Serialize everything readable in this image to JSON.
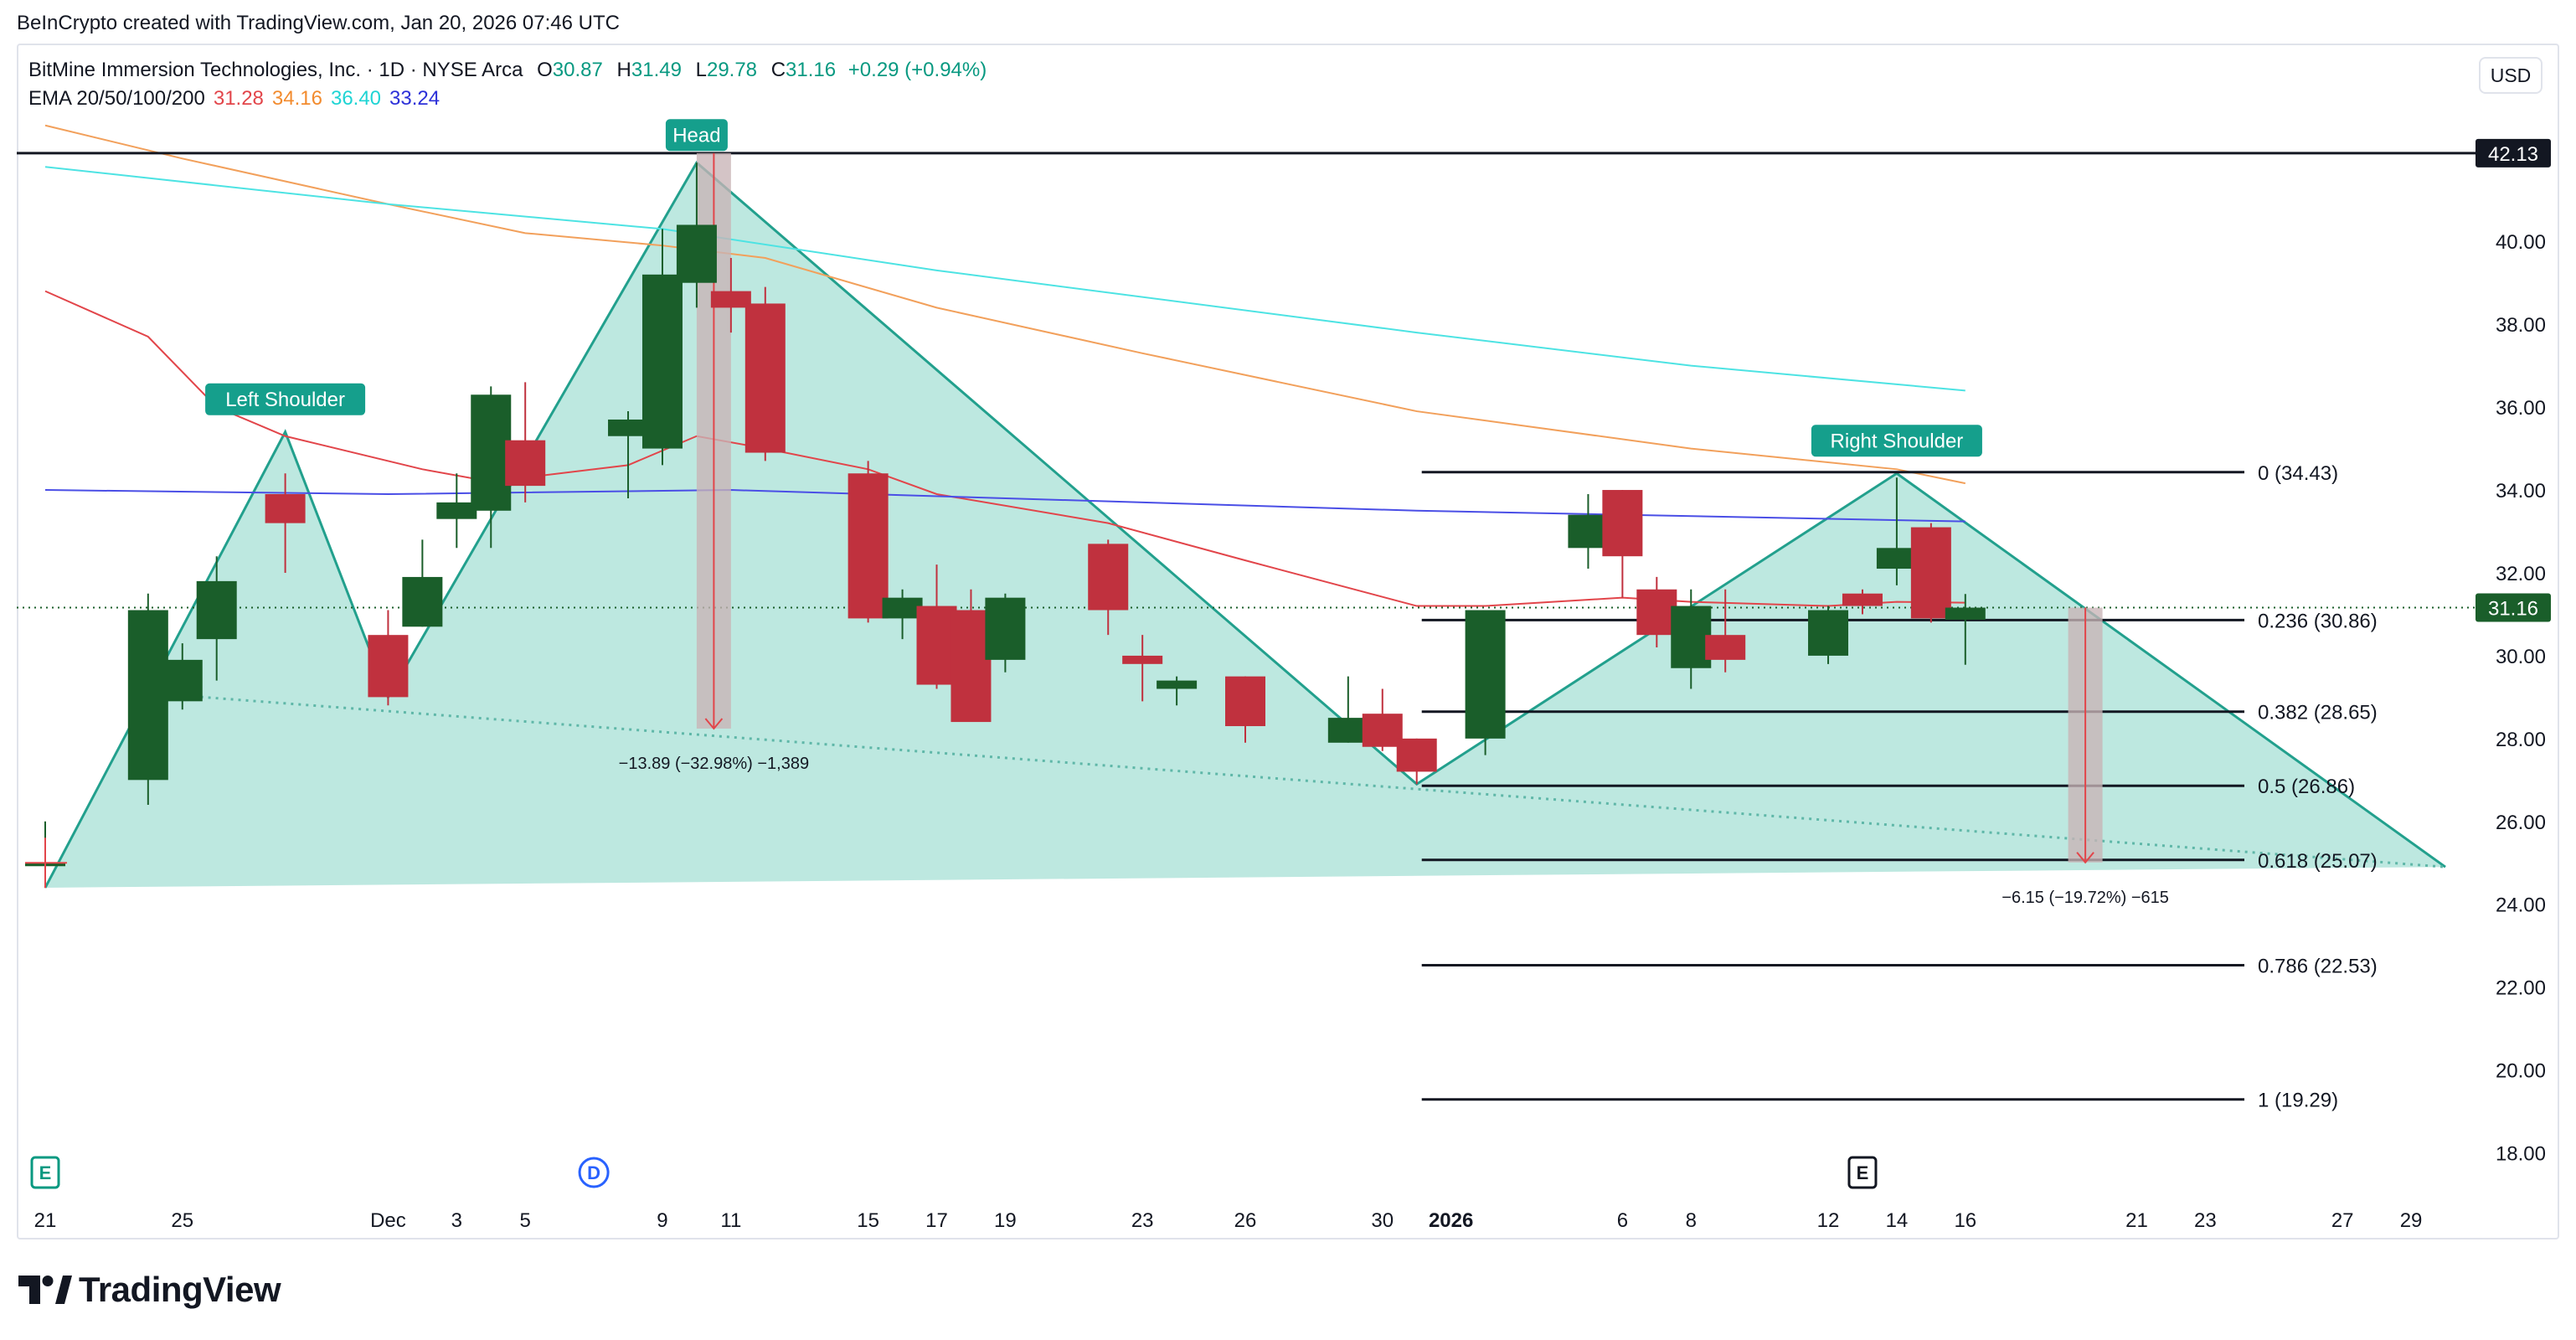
{
  "header": {
    "credit": "BeInCrypto created with TradingView.com, Jan 20, 2026 07:46 UTC"
  },
  "legend": {
    "symbol": "BitMine Immersion Technologies, Inc. · 1D · NYSE Arca",
    "open_label": "O",
    "open": "30.87",
    "high_label": "H",
    "high": "31.49",
    "low_label": "L",
    "low": "29.78",
    "close_label": "C",
    "close": "31.16",
    "change": "+0.29 (+0.94%)",
    "ema_label": "EMA 20/50/100/200",
    "ema20": "31.28",
    "ema50": "34.16",
    "ema100": "36.40",
    "ema200": "33.24"
  },
  "currency_button": "USD",
  "brand": {
    "name": "TradingView",
    "icon": "tradingview-logo-icon"
  },
  "colors": {
    "up": "#1a5e2a",
    "down": "#c0313e",
    "pattern_fill": "#b2e4da",
    "pattern_line": "#22a08d",
    "ema20": "#e2454a",
    "ema50": "#f2a05b",
    "ema100": "#4de3e3",
    "ema200": "#4a4ee6",
    "label_bg": "#159f8c"
  },
  "chart_data": {
    "type": "candlestick",
    "symbol": "BitMine Immersion Technologies, Inc.",
    "interval": "1D",
    "y_axis": {
      "range": [
        17.0,
        43.3
      ],
      "ticks": [
        "18.00",
        "20.00",
        "22.00",
        "24.00",
        "26.00",
        "28.00",
        "30.00",
        "32.00",
        "34.00",
        "36.00",
        "38.00",
        "40.00"
      ]
    },
    "x_axis": {
      "range": [
        "2025-11-21",
        "2026-01-30"
      ],
      "ticks": [
        {
          "d": "2025-11-21",
          "label": "21"
        },
        {
          "d": "2025-11-25",
          "label": "25"
        },
        {
          "d": "2025-12-01",
          "label": "Dec"
        },
        {
          "d": "2025-12-03",
          "label": "3"
        },
        {
          "d": "2025-12-05",
          "label": "5"
        },
        {
          "d": "2025-12-09",
          "label": "9"
        },
        {
          "d": "2025-12-11",
          "label": "11"
        },
        {
          "d": "2025-12-15",
          "label": "15"
        },
        {
          "d": "2025-12-17",
          "label": "17"
        },
        {
          "d": "2025-12-19",
          "label": "19"
        },
        {
          "d": "2025-12-23",
          "label": "23"
        },
        {
          "d": "2025-12-26",
          "label": "26"
        },
        {
          "d": "2025-12-30",
          "label": "30"
        },
        {
          "d": "2026-01-01",
          "label": "2026",
          "bold": true
        },
        {
          "d": "2026-01-06",
          "label": "6"
        },
        {
          "d": "2026-01-08",
          "label": "8"
        },
        {
          "d": "2026-01-12",
          "label": "12"
        },
        {
          "d": "2026-01-14",
          "label": "14"
        },
        {
          "d": "2026-01-16",
          "label": "16"
        },
        {
          "d": "2026-01-21",
          "label": "21"
        },
        {
          "d": "2026-01-23",
          "label": "23"
        },
        {
          "d": "2026-01-27",
          "label": "27"
        },
        {
          "d": "2026-01-29",
          "label": "29"
        }
      ]
    },
    "candles": [
      {
        "date": "2025-11-21",
        "o": 25.0,
        "h": 26.0,
        "l": 24.5,
        "c": 25.0
      },
      {
        "date": "2025-11-24",
        "o": 27.0,
        "h": 31.5,
        "l": 26.4,
        "c": 31.1
      },
      {
        "date": "2025-11-25",
        "o": 28.9,
        "h": 30.3,
        "l": 28.7,
        "c": 29.9
      },
      {
        "date": "2025-11-26",
        "o": 30.4,
        "h": 32.4,
        "l": 29.4,
        "c": 31.8
      },
      {
        "date": "2025-11-28",
        "o": 33.9,
        "h": 34.4,
        "l": 32.0,
        "c": 33.2
      },
      {
        "date": "2025-12-01",
        "o": 30.5,
        "h": 31.1,
        "l": 28.8,
        "c": 29.0
      },
      {
        "date": "2025-12-02",
        "o": 30.7,
        "h": 32.8,
        "l": 30.7,
        "c": 31.9
      },
      {
        "date": "2025-12-03",
        "o": 33.3,
        "h": 34.4,
        "l": 32.6,
        "c": 33.7
      },
      {
        "date": "2025-12-04",
        "o": 33.5,
        "h": 36.5,
        "l": 32.6,
        "c": 36.3
      },
      {
        "date": "2025-12-05",
        "o": 35.2,
        "h": 36.6,
        "l": 33.7,
        "c": 34.1
      },
      {
        "date": "2025-12-08",
        "o": 35.3,
        "h": 35.9,
        "l": 33.8,
        "c": 35.7
      },
      {
        "date": "2025-12-09",
        "o": 35.0,
        "h": 40.3,
        "l": 34.6,
        "c": 39.2
      },
      {
        "date": "2025-12-10",
        "o": 39.0,
        "h": 41.9,
        "l": 38.4,
        "c": 40.4
      },
      {
        "date": "2025-12-11",
        "o": 38.8,
        "h": 39.6,
        "l": 37.8,
        "c": 38.4
      },
      {
        "date": "2025-12-12",
        "o": 38.5,
        "h": 38.9,
        "l": 34.7,
        "c": 34.9
      },
      {
        "date": "2025-12-15",
        "o": 34.4,
        "h": 34.7,
        "l": 30.8,
        "c": 30.9
      },
      {
        "date": "2025-12-16",
        "o": 30.9,
        "h": 31.6,
        "l": 30.4,
        "c": 31.4
      },
      {
        "date": "2025-12-17",
        "o": 31.2,
        "h": 32.2,
        "l": 29.2,
        "c": 29.3
      },
      {
        "date": "2025-12-18",
        "o": 31.1,
        "h": 31.6,
        "l": 28.6,
        "c": 28.4
      },
      {
        "date": "2025-12-19",
        "o": 29.9,
        "h": 31.5,
        "l": 29.6,
        "c": 31.4
      },
      {
        "date": "2025-12-22",
        "o": 32.7,
        "h": 32.8,
        "l": 30.5,
        "c": 31.1
      },
      {
        "date": "2025-12-23",
        "o": 30.0,
        "h": 30.5,
        "l": 28.9,
        "c": 29.8
      },
      {
        "date": "2025-12-24",
        "o": 29.2,
        "h": 29.5,
        "l": 28.8,
        "c": 29.4
      },
      {
        "date": "2025-12-26",
        "o": 29.5,
        "h": 29.5,
        "l": 27.9,
        "c": 28.3
      },
      {
        "date": "2025-12-29",
        "o": 27.9,
        "h": 29.5,
        "l": 27.9,
        "c": 28.5
      },
      {
        "date": "2025-12-30",
        "o": 28.6,
        "h": 29.2,
        "l": 27.7,
        "c": 27.8
      },
      {
        "date": "2025-12-31",
        "o": 28.0,
        "h": 28.0,
        "l": 26.9,
        "c": 27.2
      },
      {
        "date": "2026-01-02",
        "o": 28.0,
        "h": 31.1,
        "l": 27.6,
        "c": 31.1
      },
      {
        "date": "2026-01-05",
        "o": 32.6,
        "h": 33.9,
        "l": 32.1,
        "c": 33.4
      },
      {
        "date": "2026-01-06",
        "o": 34.0,
        "h": 34.0,
        "l": 31.4,
        "c": 32.4
      },
      {
        "date": "2026-01-07",
        "o": 31.6,
        "h": 31.9,
        "l": 30.2,
        "c": 30.5
      },
      {
        "date": "2026-01-08",
        "o": 29.7,
        "h": 31.6,
        "l": 29.2,
        "c": 31.2
      },
      {
        "date": "2026-01-09",
        "o": 30.5,
        "h": 31.6,
        "l": 29.6,
        "c": 29.9
      },
      {
        "date": "2026-01-12",
        "o": 30.0,
        "h": 31.2,
        "l": 29.8,
        "c": 31.1
      },
      {
        "date": "2026-01-13",
        "o": 31.5,
        "h": 31.6,
        "l": 31.0,
        "c": 31.2
      },
      {
        "date": "2026-01-14",
        "o": 32.1,
        "h": 34.3,
        "l": 31.7,
        "c": 32.6
      },
      {
        "date": "2026-01-15",
        "o": 33.1,
        "h": 33.2,
        "l": 30.8,
        "c": 30.9
      },
      {
        "date": "2026-01-16",
        "o": 30.87,
        "h": 31.49,
        "l": 29.78,
        "c": 31.16
      }
    ],
    "ema": [
      {
        "name": "EMA 20",
        "color": "#e2454a",
        "points": [
          [
            "2025-11-21",
            38.8
          ],
          [
            "2025-11-24",
            37.7
          ],
          [
            "2025-11-26",
            36.0
          ],
          [
            "2025-11-28",
            35.3
          ],
          [
            "2025-12-02",
            34.5
          ],
          [
            "2025-12-04",
            34.2
          ],
          [
            "2025-12-08",
            34.6
          ],
          [
            "2025-12-10",
            35.3
          ],
          [
            "2025-12-12",
            35.0
          ],
          [
            "2025-12-15",
            34.5
          ],
          [
            "2025-12-17",
            33.9
          ],
          [
            "2025-12-22",
            33.2
          ],
          [
            "2025-12-26",
            32.3
          ],
          [
            "2025-12-31",
            31.2
          ],
          [
            "2026-01-02",
            31.2
          ],
          [
            "2026-01-06",
            31.4
          ],
          [
            "2026-01-08",
            31.3
          ],
          [
            "2026-01-12",
            31.2
          ],
          [
            "2026-01-14",
            31.3
          ],
          [
            "2026-01-16",
            31.28
          ]
        ]
      },
      {
        "name": "EMA 50",
        "color": "#f2a05b",
        "points": [
          [
            "2025-11-21",
            42.8
          ],
          [
            "2025-11-25",
            42.0
          ],
          [
            "2025-12-01",
            40.9
          ],
          [
            "2025-12-05",
            40.2
          ],
          [
            "2025-12-09",
            39.9
          ],
          [
            "2025-12-12",
            39.6
          ],
          [
            "2025-12-17",
            38.4
          ],
          [
            "2025-12-23",
            37.3
          ],
          [
            "2025-12-31",
            35.9
          ],
          [
            "2026-01-08",
            35.0
          ],
          [
            "2026-01-14",
            34.5
          ],
          [
            "2026-01-16",
            34.16
          ]
        ]
      },
      {
        "name": "EMA 100",
        "color": "#4de3e3",
        "points": [
          [
            "2025-11-21",
            41.8
          ],
          [
            "2025-12-01",
            40.9
          ],
          [
            "2025-12-09",
            40.3
          ],
          [
            "2025-12-17",
            39.3
          ],
          [
            "2025-12-31",
            37.8
          ],
          [
            "2026-01-08",
            37.0
          ],
          [
            "2026-01-16",
            36.4
          ]
        ]
      },
      {
        "name": "EMA 200",
        "color": "#4a4ee6",
        "points": [
          [
            "2025-11-21",
            34.0
          ],
          [
            "2025-12-01",
            33.9
          ],
          [
            "2025-12-11",
            34.0
          ],
          [
            "2025-12-31",
            33.5
          ],
          [
            "2026-01-16",
            33.24
          ]
        ]
      }
    ],
    "fibonacci": [
      {
        "ratio": "0",
        "value": 34.43,
        "label": "0 (34.43)"
      },
      {
        "ratio": "0.236",
        "value": 30.86,
        "label": "0.236 (30.86)"
      },
      {
        "ratio": "0.382",
        "value": 28.65,
        "label": "0.382 (28.65)"
      },
      {
        "ratio": "0.5",
        "value": 26.86,
        "label": "0.5 (26.86)"
      },
      {
        "ratio": "0.618",
        "value": 25.07,
        "label": "0.618 (25.07)"
      },
      {
        "ratio": "0.786",
        "value": 22.53,
        "label": "0.786 (22.53)"
      },
      {
        "ratio": "1",
        "value": 19.29,
        "label": "1 (19.29)"
      }
    ],
    "pattern": {
      "type": "head-and-shoulders",
      "points": [
        [
          "2025-11-21",
          24.4
        ],
        [
          "2025-11-28",
          35.4
        ],
        [
          "2025-12-01",
          29.0
        ],
        [
          "2025-12-10",
          41.9
        ],
        [
          "2025-12-31",
          26.9
        ],
        [
          "2026-01-14",
          34.4
        ],
        [
          "2026-01-30",
          24.9
        ]
      ],
      "neckline": [
        [
          "2025-11-24",
          29.1
        ],
        [
          "2026-01-30",
          24.9
        ]
      ],
      "labels": {
        "left_shoulder": "Left Shoulder",
        "head": "Head",
        "right_shoulder": "Right Shoulder"
      }
    },
    "measurements": [
      {
        "from_date": "2025-12-10",
        "to_date": "2025-12-11",
        "from": 42.13,
        "to": 28.24,
        "label": "−13.89 (−32.98%) −1,389"
      },
      {
        "from_date": "2026-01-19",
        "to_date": "2026-01-20",
        "from": 31.16,
        "to": 25.01,
        "label": "−6.15 (−19.72%) −615"
      }
    ],
    "resistance": {
      "value": 42.13,
      "label": "42.13"
    },
    "last_price": {
      "value": 31.16,
      "label": "31.16"
    },
    "events": [
      {
        "date": "2025-11-21",
        "type": "earnings",
        "label": "E"
      },
      {
        "date": "2025-12-07",
        "type": "dividend",
        "label": "D"
      },
      {
        "date": "2026-01-13",
        "type": "earnings",
        "label": "E"
      }
    ]
  }
}
